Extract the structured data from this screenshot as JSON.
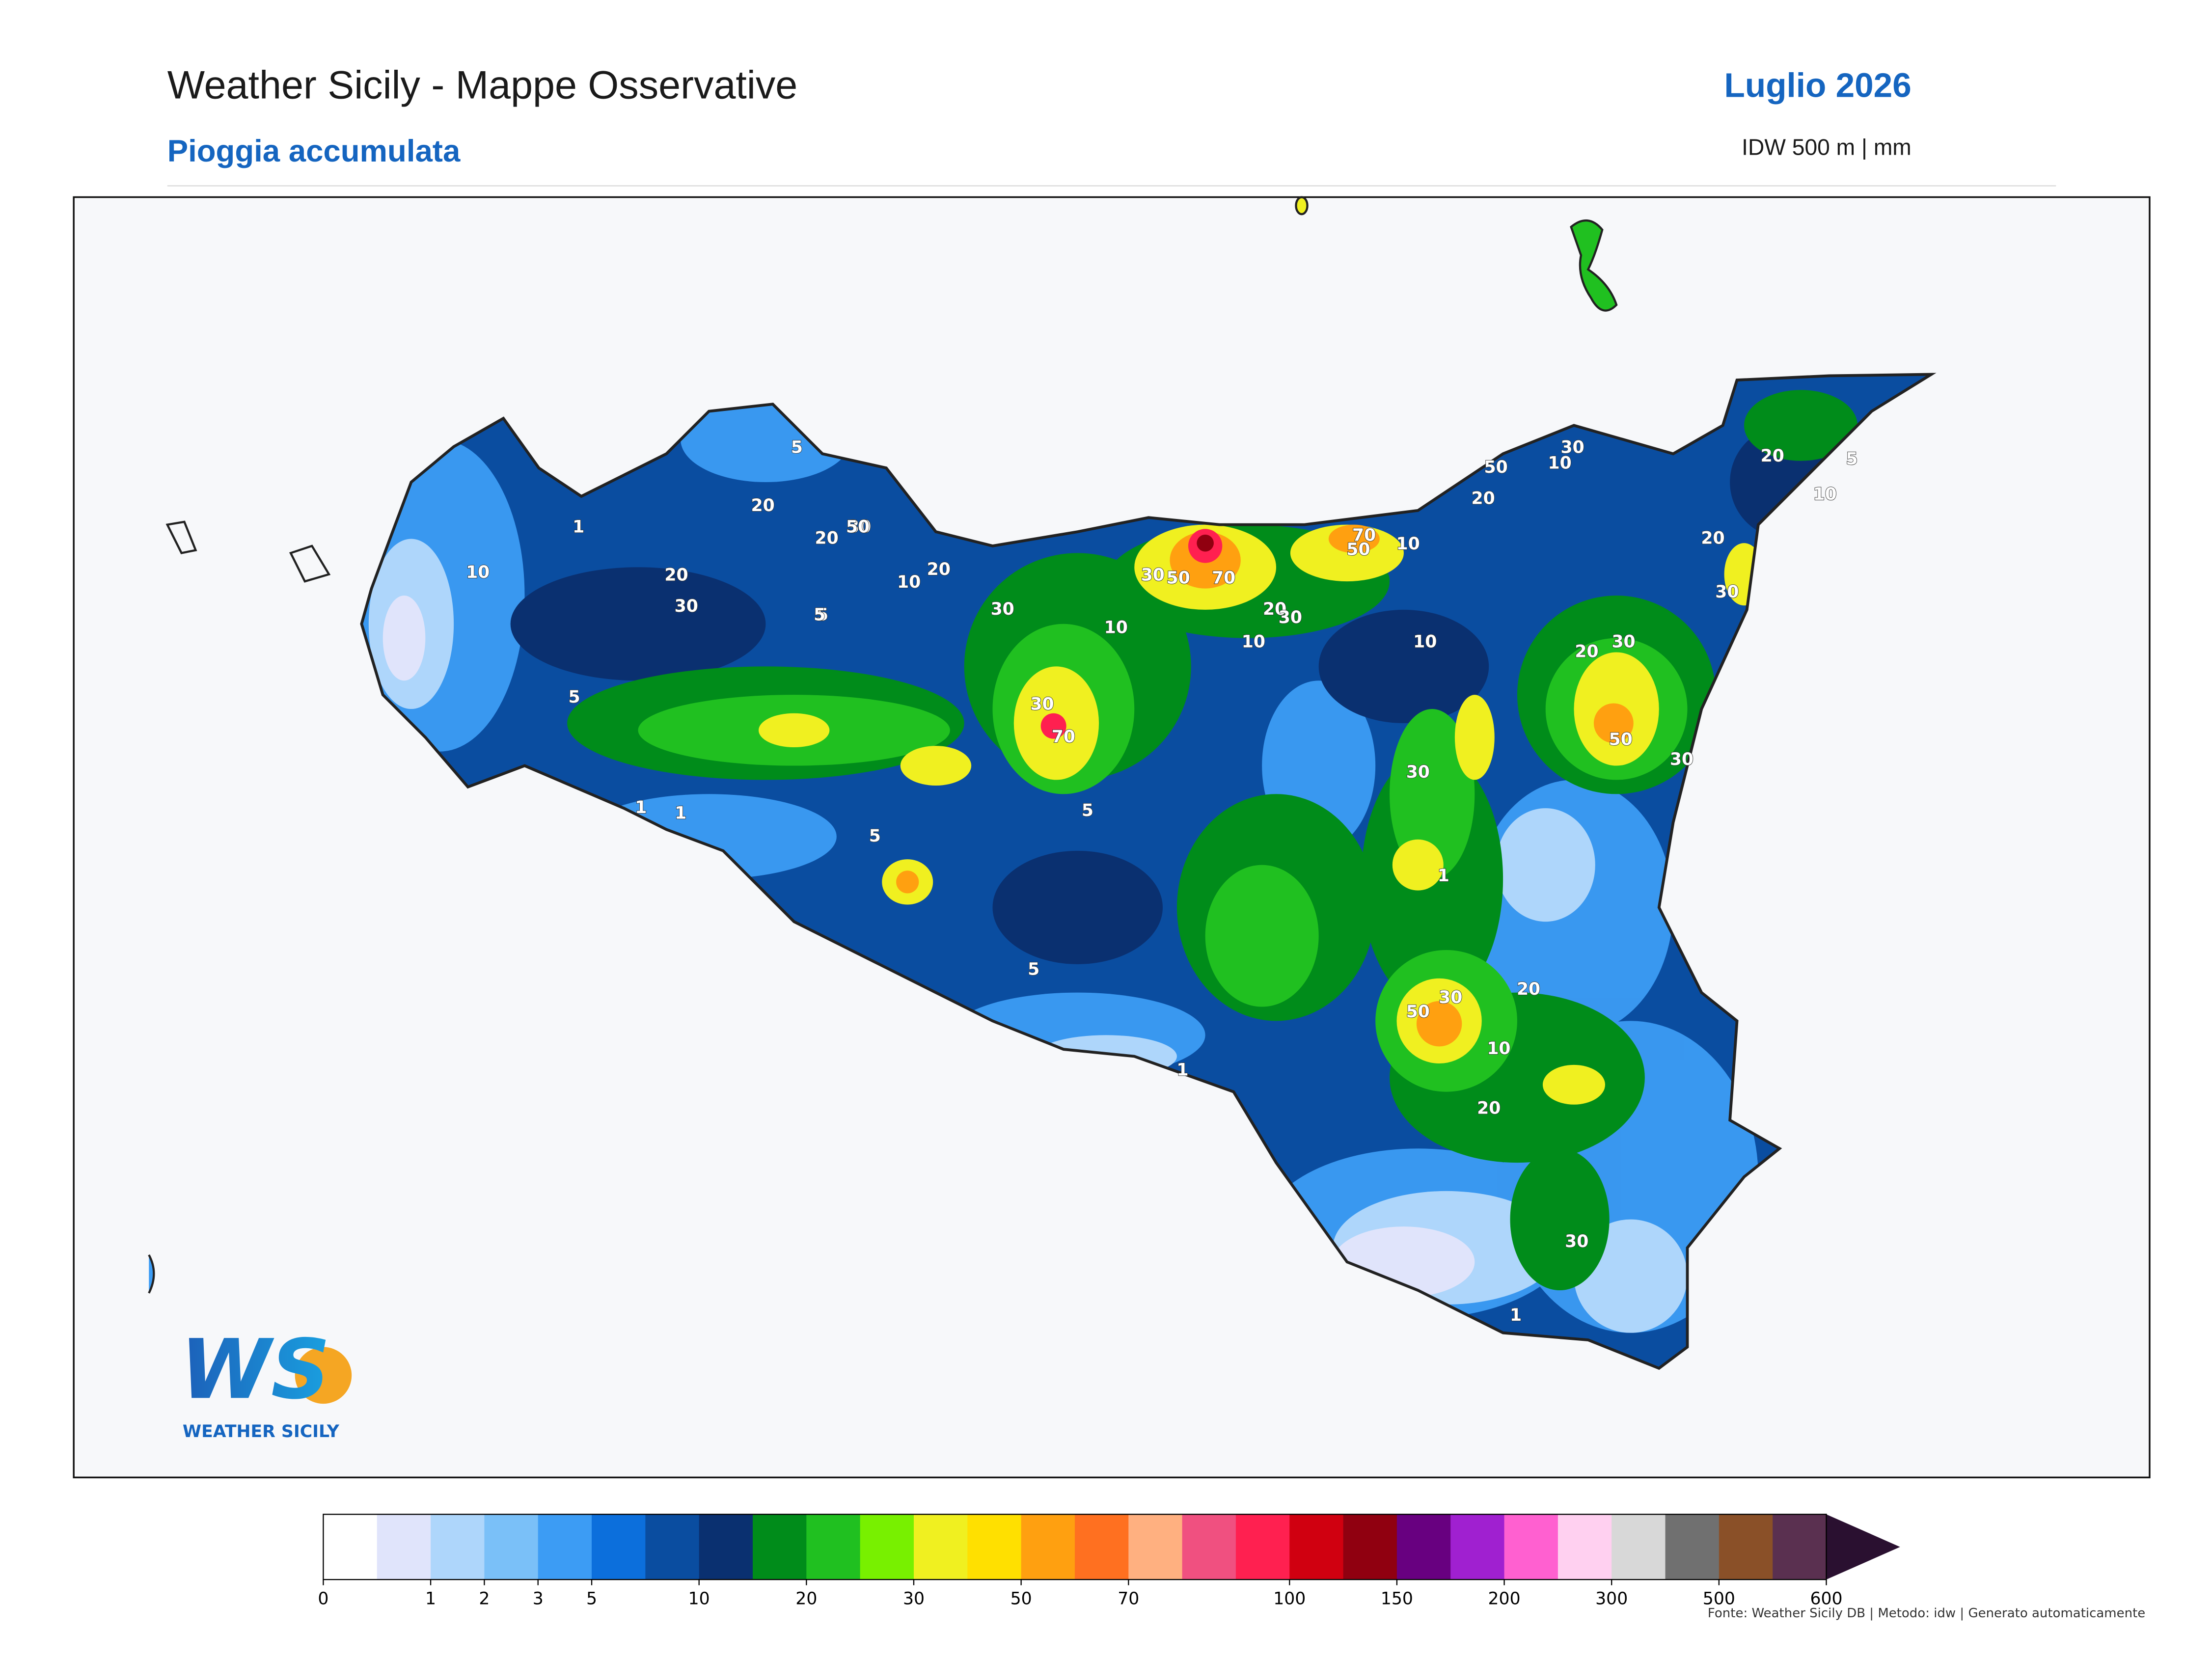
{
  "header": {
    "title": "Weather Sicily - Mappe Osservative",
    "subtitle": "Pioggia accumulata",
    "period": "Luglio 2026",
    "method": "IDW 500 m | mm"
  },
  "map": {
    "contour_labels": [
      5,
      1,
      10,
      5,
      20,
      30,
      20,
      30,
      10,
      5,
      20,
      50,
      30,
      20,
      10,
      30,
      70,
      30,
      50,
      70,
      50,
      70,
      10,
      20,
      10,
      30,
      20,
      50,
      30,
      10,
      20,
      30,
      20,
      5,
      10,
      30,
      50,
      30,
      20,
      30,
      10,
      5,
      5,
      1,
      1,
      5,
      5,
      1,
      1,
      20,
      30,
      50,
      30,
      10,
      20,
      1
    ]
  },
  "logo": {
    "mark": "WS",
    "name": "WEATHER SICILY"
  },
  "colorbar": {
    "bounds": [
      0,
      0.5,
      1,
      2,
      3,
      5,
      7.5,
      10,
      15,
      20,
      25,
      30,
      40,
      50,
      60,
      70,
      80,
      90,
      100,
      125,
      150,
      175,
      200,
      250,
      300,
      400,
      500,
      550,
      600
    ],
    "colors": [
      "#ffffff",
      "#e0e4fb",
      "#aed6fb",
      "#7ac0f8",
      "#3c9cf4",
      "#0c6fdc",
      "#0a4da0",
      "#0a3070",
      "#008c1a",
      "#20c020",
      "#78f000",
      "#f0f020",
      "#ffe000",
      "#ffa010",
      "#ff7020",
      "#ffb080",
      "#f05080",
      "#ff2050",
      "#d00010",
      "#900010",
      "#680080",
      "#a020d0",
      "#ff60d0",
      "#ffd0f0",
      "#d8d8d8",
      "#707070",
      "#8a5028",
      "#5a3050"
    ],
    "extend_color": "#2a1030",
    "ticks": [
      0,
      1,
      2,
      3,
      5,
      10,
      20,
      30,
      50,
      70,
      100,
      150,
      200,
      300,
      500,
      600
    ]
  },
  "footer": "Fonte: Weather Sicily DB | Metodo: idw | Generato automaticamente"
}
